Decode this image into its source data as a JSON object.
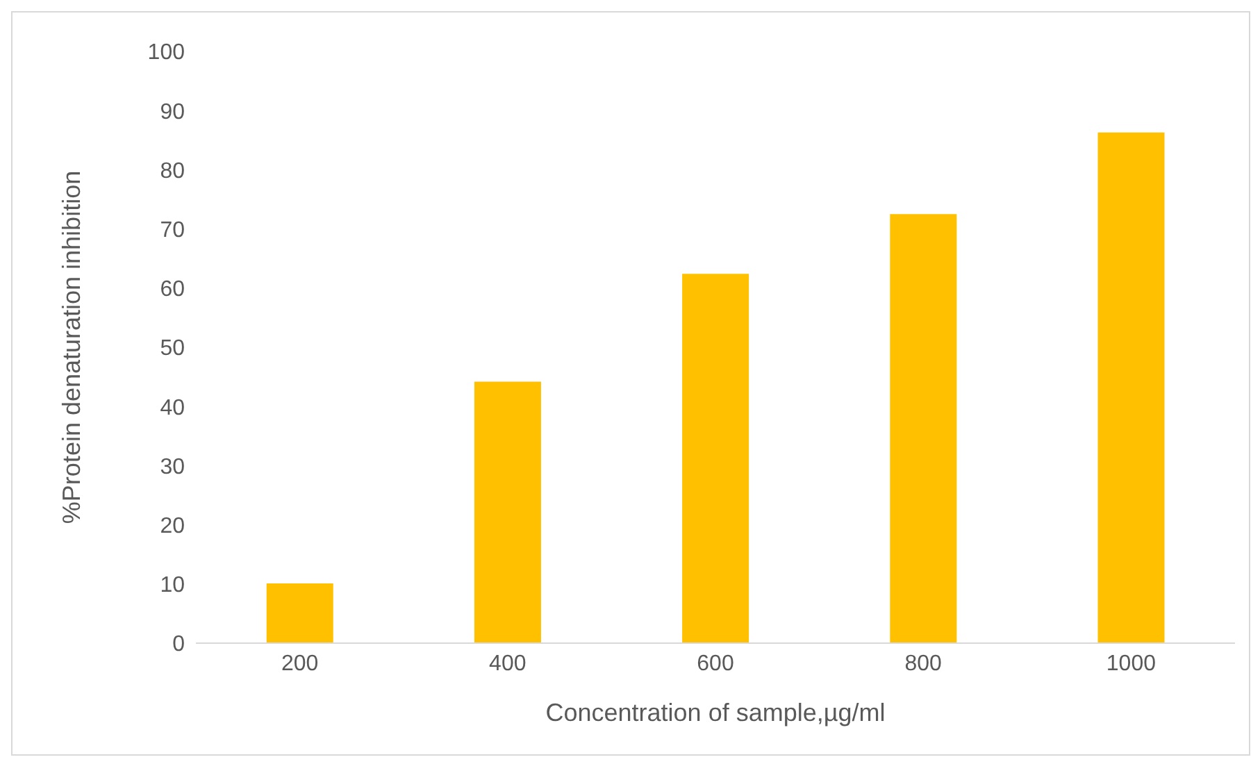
{
  "chart_data": {
    "type": "bar",
    "xlabel": "Concentration of sample,µg/ml",
    "ylabel": "%Protein denaturation inhibition",
    "categories": [
      "200",
      "400",
      "600",
      "800",
      "1000"
    ],
    "values": [
      10.1,
      44.2,
      62.4,
      72.5,
      86.3
    ],
    "color": "#ffc000",
    "ylim": [
      0,
      100
    ],
    "yticks": [
      0,
      10,
      20,
      30,
      40,
      50,
      60,
      70,
      80,
      90,
      100
    ],
    "grid": false,
    "legend": false
  }
}
